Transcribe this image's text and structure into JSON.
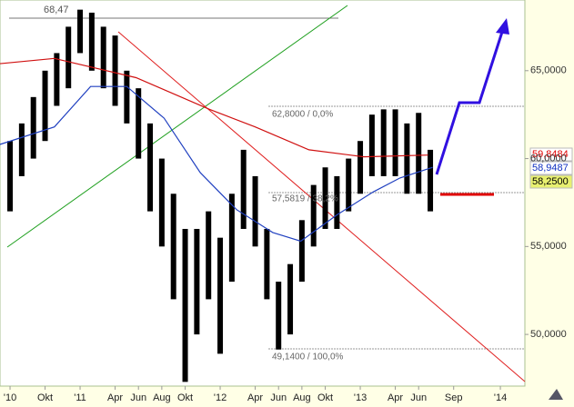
{
  "chart_data": {
    "type": "ohlc",
    "x": [
      6,
      7,
      8,
      9,
      10,
      11,
      12,
      13,
      14,
      15,
      16,
      17,
      18,
      19,
      20,
      21,
      22,
      23,
      24,
      25,
      26,
      27,
      28,
      29,
      30,
      31,
      32,
      33,
      34,
      35,
      36,
      37,
      38,
      39,
      40,
      41,
      42
    ],
    "high": [
      61,
      62,
      63.5,
      65,
      66,
      67.5,
      68.47,
      68.3,
      67.5,
      67,
      65,
      64,
      62,
      60,
      58,
      56,
      56,
      57,
      55.5,
      58,
      60.5,
      59,
      56,
      53,
      54,
      56.5,
      58.5,
      59.5,
      59,
      60,
      61,
      62.5,
      62.8,
      62.8,
      62,
      62.6,
      60.5
    ],
    "low": [
      57,
      59,
      60,
      61,
      63,
      64,
      66,
      65,
      64,
      63,
      62,
      60,
      57,
      55,
      52,
      47.3,
      50,
      52,
      48.9,
      53,
      56,
      55,
      52,
      49.14,
      50,
      53,
      55,
      56,
      56,
      57,
      58,
      59,
      59,
      59,
      58,
      58,
      57
    ],
    "color": "#000000",
    "moving_averages": [
      {
        "color": "#2040c0",
        "x": [
          5.1,
          9.8,
          12.9,
          16,
          19.2,
          22.3,
          25.4,
          28.5,
          30.9,
          34,
          37.1,
          39.4,
          42.2
        ],
        "values": [
          60.8,
          61.8,
          64.1,
          64.1,
          62.3,
          59.2,
          57.1,
          55.8,
          55.3,
          56.8,
          58.1,
          58.9,
          59.5
        ]
      },
      {
        "color": "#d01010",
        "x": [
          5.1,
          9.8,
          16.8,
          23.1,
          27,
          31.6,
          36.3,
          41.8
        ],
        "values": [
          65.4,
          65.7,
          64.6,
          62.8,
          61.8,
          60.5,
          60.1,
          60.2
        ]
      }
    ],
    "xlim": [
      5.14,
      50.1
    ],
    "ylim": [
      47.06,
      69.02
    ],
    "xticks": [
      {
        "value": 6,
        "label": "'10"
      },
      {
        "value": 9,
        "label": "Okt"
      },
      {
        "value": 12,
        "label": "'11"
      },
      {
        "value": 15,
        "label": "Apr"
      },
      {
        "value": 17,
        "label": "Jun"
      },
      {
        "value": 19,
        "label": "Aug"
      },
      {
        "value": 21,
        "label": "Okt"
      },
      {
        "value": 24,
        "label": "'12"
      },
      {
        "value": 27,
        "label": "Apr"
      },
      {
        "value": 29,
        "label": "Jun"
      },
      {
        "value": 31,
        "label": "Aug"
      },
      {
        "value": 33,
        "label": "Okt"
      },
      {
        "value": 36,
        "label": "'13"
      },
      {
        "value": 39,
        "label": "Apr"
      },
      {
        "value": 41,
        "label": "Jun"
      },
      {
        "value": 44,
        "label": "Sep"
      },
      {
        "value": 48,
        "label": "'14"
      }
    ],
    "yticks": [
      {
        "value": 50,
        "label": "50,0000"
      },
      {
        "value": 55,
        "label": "55,0000"
      },
      {
        "value": 60,
        "label": "60,0000"
      },
      {
        "value": 65,
        "label": "65,0000"
      }
    ],
    "annotations": [
      "68,47",
      "62,8000 / 0,0%",
      "57,5819 / 38,2%",
      "49,1400 / 100,0%"
    ],
    "price_labels": [
      {
        "text": "59,8484",
        "color": "#e00000",
        "background": "#ffffff"
      },
      {
        "text": "58,9487",
        "color": "#1030c0",
        "background": "#ffffff"
      },
      {
        "text": "58,2500",
        "color": "#000000",
        "background": "#e8f070"
      }
    ]
  }
}
